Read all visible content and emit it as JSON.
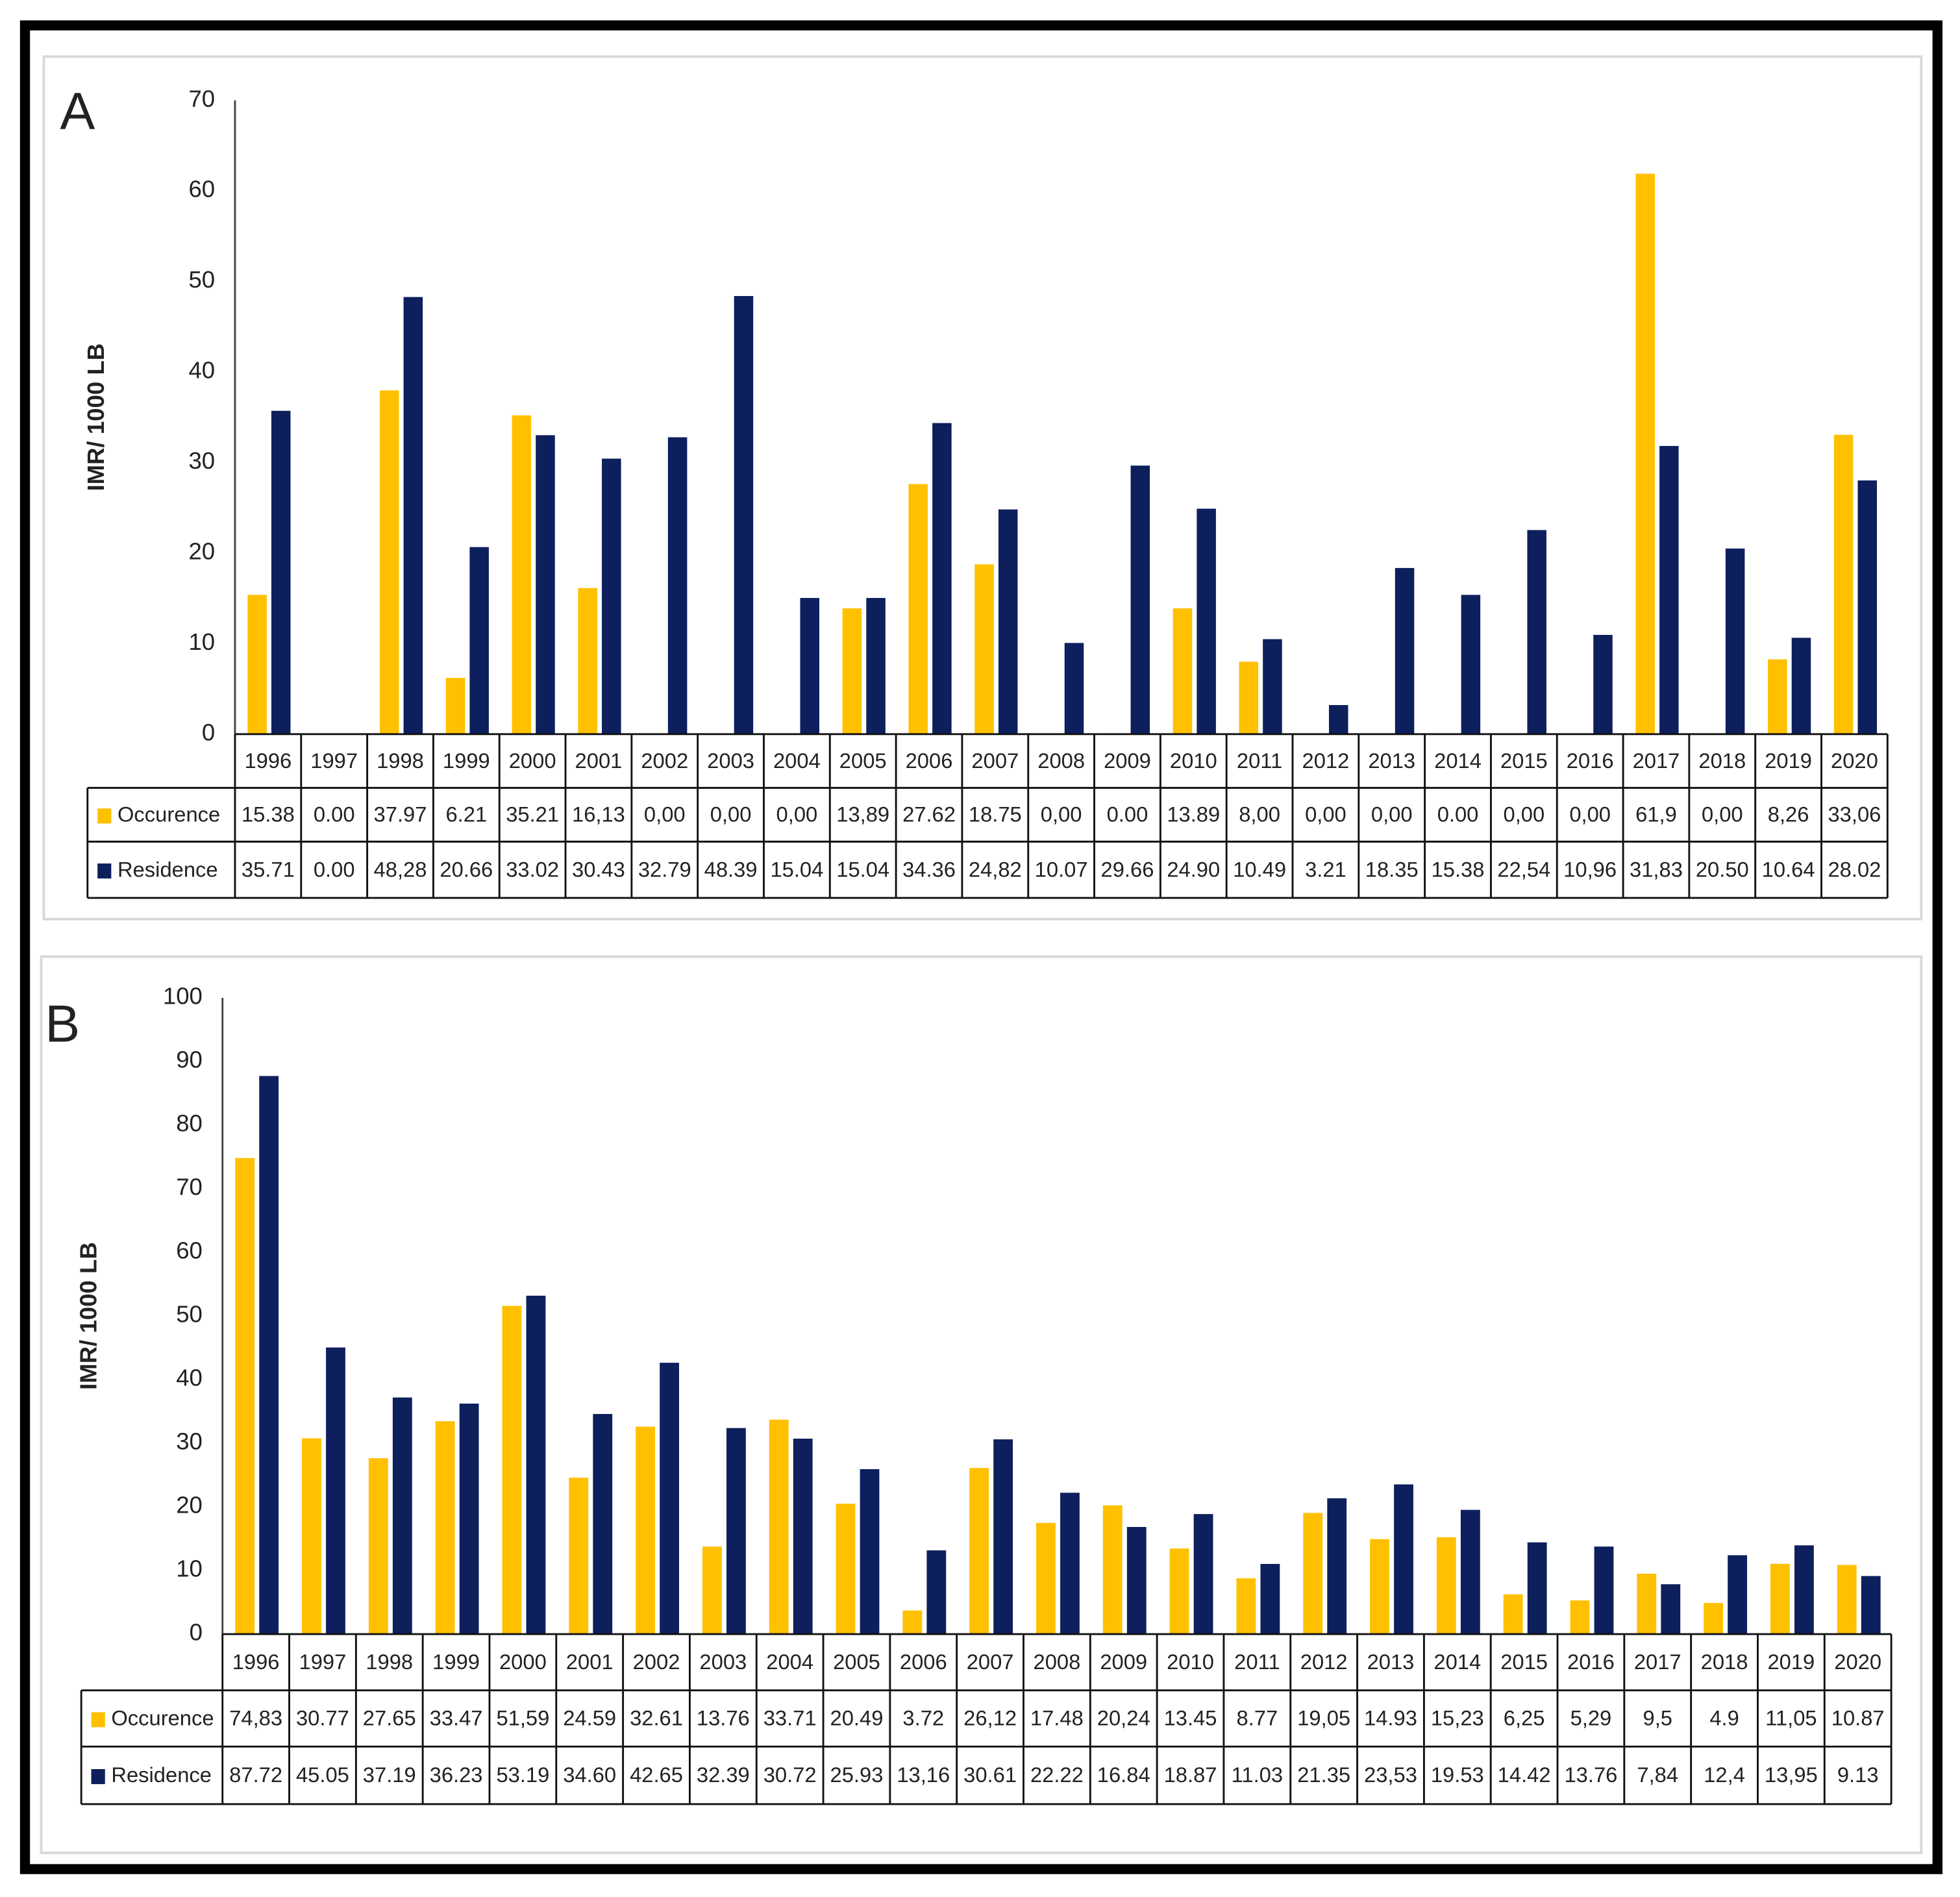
{
  "chart_data": [
    {
      "type": "bar",
      "panel_label": "A",
      "ylabel": "IMR/ 1000 LB",
      "categories": [
        "1996",
        "1997",
        "1998",
        "1999",
        "2000",
        "2001",
        "2002",
        "2003",
        "2004",
        "2005",
        "2006",
        "2007",
        "2008",
        "2009",
        "2010",
        "2011",
        "2012",
        "2013",
        "2014",
        "2015",
        "2016",
        "2017",
        "2018",
        "2019",
        "2020"
      ],
      "series": [
        {
          "name": "Occurence",
          "color": "#FFC000",
          "values": [
            15.38,
            0,
            37.97,
            6.21,
            35.21,
            16.13,
            0,
            0,
            0,
            13.89,
            27.62,
            18.75,
            0,
            0,
            13.89,
            8,
            0,
            0,
            0,
            0,
            0,
            61.9,
            0,
            8.26,
            33.06
          ],
          "value_labels": [
            "15.38",
            "0.00",
            "37.97",
            "6.21",
            "35.21",
            "16,13",
            "0,00",
            "0,00",
            "0,00",
            "13,89",
            "27.62",
            "18.75",
            "0,00",
            "0.00",
            "13.89",
            "8,00",
            "0,00",
            "0,00",
            "0.00",
            "0,00",
            "0,00",
            "61,9",
            "0,00",
            "8,26",
            "33,06"
          ]
        },
        {
          "name": "Residence",
          "color": "#0D1F5C",
          "values": [
            35.71,
            0,
            48.28,
            20.66,
            33.02,
            30.43,
            32.79,
            48.39,
            15.04,
            15.04,
            34.36,
            24.82,
            10.07,
            29.66,
            24.9,
            10.49,
            3.21,
            18.35,
            15.38,
            22.54,
            10.96,
            31.83,
            20.5,
            10.64,
            28.02
          ],
          "value_labels": [
            "35.71",
            "0.00",
            "48,28",
            "20.66",
            "33.02",
            "30.43",
            "32.79",
            "48.39",
            "15.04",
            "15.04",
            "34.36",
            "24,82",
            "10.07",
            "29.66",
            "24.90",
            "10.49",
            "3.21",
            "18.35",
            "15.38",
            "22,54",
            "10,96",
            "31,83",
            "20.50",
            "10.64",
            "28.02"
          ]
        }
      ],
      "ylim": [
        0,
        70
      ],
      "yticks": [
        0,
        10,
        20,
        30,
        40,
        50,
        60,
        70
      ],
      "grid": false
    },
    {
      "type": "bar",
      "panel_label": "B",
      "ylabel": "IMR/ 1000 LB",
      "categories": [
        "1996",
        "1997",
        "1998",
        "1999",
        "2000",
        "2001",
        "2002",
        "2003",
        "2004",
        "2005",
        "2006",
        "2007",
        "2008",
        "2009",
        "2010",
        "2011",
        "2012",
        "2013",
        "2014",
        "2015",
        "2016",
        "2017",
        "2018",
        "2019",
        "2020"
      ],
      "series": [
        {
          "name": "Occurence",
          "color": "#FFC000",
          "values": [
            74.83,
            30.77,
            27.65,
            33.47,
            51.59,
            24.59,
            32.61,
            13.76,
            33.71,
            20.49,
            3.72,
            26.12,
            17.48,
            20.24,
            13.45,
            8.77,
            19.05,
            14.93,
            15.23,
            6.25,
            5.29,
            9.5,
            4.9,
            11.05,
            10.87
          ],
          "value_labels": [
            "74,83",
            "30.77",
            "27.65",
            "33.47",
            "51,59",
            "24.59",
            "32.61",
            "13.76",
            "33.71",
            "20.49",
            "3.72",
            "26,12",
            "17.48",
            "20,24",
            "13.45",
            "8.77",
            "19,05",
            "14.93",
            "15,23",
            "6,25",
            "5,29",
            "9,5",
            "4.9",
            "11,05",
            "10.87"
          ]
        },
        {
          "name": "Residence",
          "color": "#0D1F5C",
          "values": [
            87.72,
            45.05,
            37.19,
            36.23,
            53.19,
            34.6,
            42.65,
            32.39,
            30.72,
            25.93,
            13.16,
            30.61,
            22.22,
            16.84,
            18.87,
            11.03,
            21.35,
            23.53,
            19.53,
            14.42,
            13.76,
            7.84,
            12.4,
            13.95,
            9.13
          ],
          "value_labels": [
            "87.72",
            "45.05",
            "37.19",
            "36.23",
            "53.19",
            "34.60",
            "42.65",
            "32.39",
            "30.72",
            "25.93",
            "13,16",
            "30.61",
            "22.22",
            "16.84",
            "18.87",
            "11.03",
            "21.35",
            "23,53",
            "19.53",
            "14.42",
            "13.76",
            "7,84",
            "12,4",
            "13,95",
            "9.13"
          ]
        }
      ],
      "ylim": [
        0,
        100
      ],
      "yticks": [
        0,
        10,
        20,
        30,
        40,
        50,
        60,
        70,
        80,
        90,
        100
      ],
      "grid": false
    }
  ]
}
